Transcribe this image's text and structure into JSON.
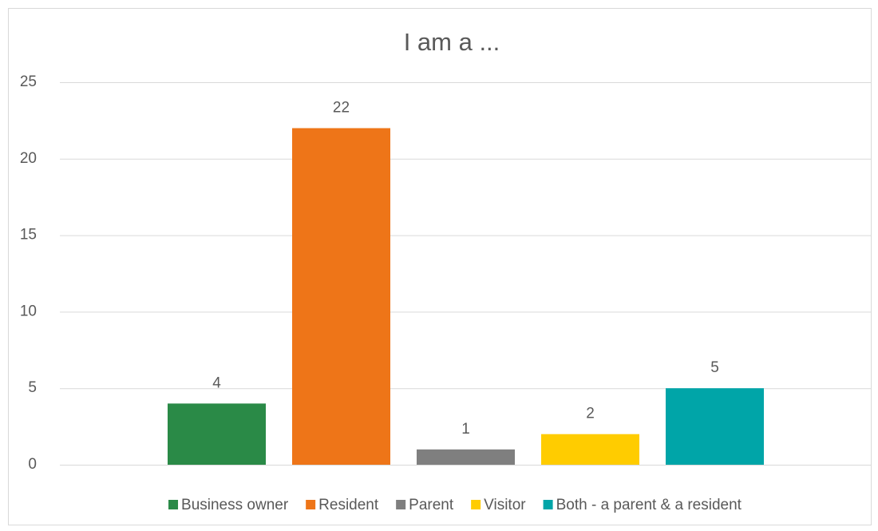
{
  "chart_data": {
    "type": "bar",
    "title": "I am a ...",
    "categories": [
      null
    ],
    "series": [
      {
        "name": "Business owner",
        "color": "#2a8a47",
        "values": [
          4
        ]
      },
      {
        "name": "Resident",
        "color": "#ee7518",
        "values": [
          22
        ]
      },
      {
        "name": "Parent",
        "color": "#7f7f7f",
        "values": [
          1
        ]
      },
      {
        "name": "Visitor",
        "color": "#ffcc00",
        "values": [
          2
        ]
      },
      {
        "name": "Both - a parent & a resident",
        "color": "#00a5a8",
        "values": [
          5
        ]
      }
    ],
    "ylim": [
      0,
      25
    ],
    "yticks": [
      0,
      5,
      10,
      15,
      20,
      25
    ],
    "grid": true,
    "legend": "bottom"
  }
}
